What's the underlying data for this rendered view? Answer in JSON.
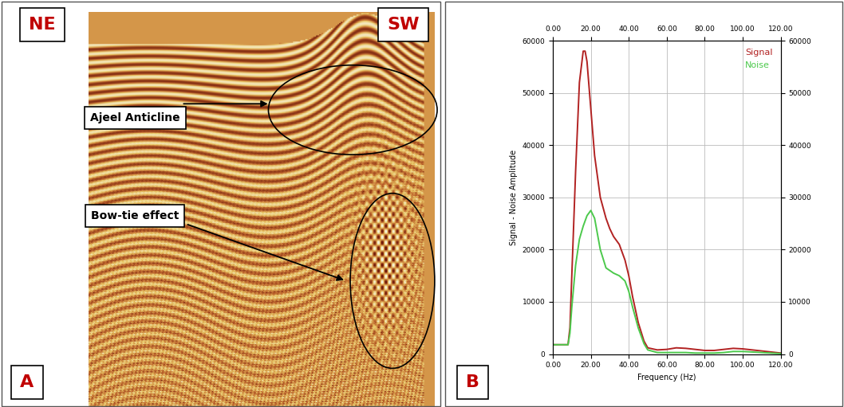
{
  "seismic_section": {
    "panel_label": "A",
    "left_label": "NE",
    "right_label": "SW",
    "annotations": [
      "Ajeel Anticline",
      "Bow-tie effect"
    ]
  },
  "chart_data": {
    "type": "line",
    "panel_label": "B",
    "x_label": "Frequency (Hz)",
    "y_label": "Signal - Noise Amplitude",
    "x": [
      0,
      5,
      8,
      9,
      10,
      12,
      14,
      16,
      17,
      18,
      20,
      22,
      25,
      28,
      30,
      32,
      35,
      38,
      40,
      42,
      45,
      48,
      50,
      55,
      60,
      65,
      70,
      75,
      80,
      85,
      90,
      95,
      100,
      105,
      110,
      115,
      120
    ],
    "series": [
      {
        "name": "Signal",
        "color": "#b22222",
        "values": [
          1800,
          1800,
          1800,
          5000,
          15000,
          35000,
          52000,
          58000,
          58000,
          56000,
          47000,
          38000,
          30000,
          26000,
          24000,
          22500,
          21000,
          18000,
          15000,
          11000,
          6000,
          2500,
          1200,
          800,
          900,
          1200,
          1100,
          900,
          700,
          700,
          900,
          1100,
          1000,
          800,
          600,
          400,
          200
        ]
      },
      {
        "name": "Noise",
        "color": "#4cc94c",
        "values": [
          1800,
          1800,
          1800,
          4000,
          9000,
          17000,
          22000,
          24500,
          25500,
          26500,
          27500,
          26000,
          20000,
          16500,
          16000,
          15500,
          15000,
          14000,
          12000,
          9000,
          5000,
          2000,
          800,
          300,
          300,
          300,
          300,
          200,
          200,
          200,
          300,
          500,
          500,
          400,
          300,
          200,
          100
        ]
      }
    ],
    "xlim": [
      0,
      120
    ],
    "xticks": [
      {
        "value": 0,
        "label": "0.00"
      },
      {
        "value": 20,
        "label": "20.00"
      },
      {
        "value": 40,
        "label": "40.00"
      },
      {
        "value": 60,
        "label": "60.00"
      },
      {
        "value": 80,
        "label": "80.00"
      },
      {
        "value": 100,
        "label": "100.00"
      },
      {
        "value": 120,
        "label": "120.00"
      }
    ],
    "ylim": [
      0,
      60000
    ],
    "yticks": [
      0,
      10000,
      20000,
      30000,
      40000,
      50000,
      60000
    ],
    "y2lim": [
      0,
      60000
    ],
    "y2ticks": [
      0,
      10000,
      20000,
      30000,
      40000,
      50000,
      60000
    ],
    "grid": true,
    "legend": "upper right"
  }
}
